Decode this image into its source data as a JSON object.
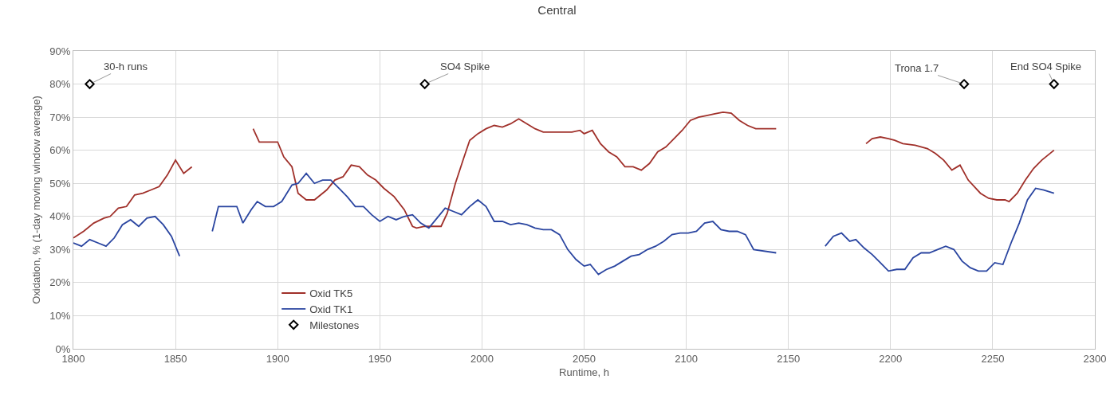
{
  "chart_data": {
    "type": "line",
    "title": "Central",
    "xlabel": "Runtime, h",
    "ylabel": "Oxidation, % (1-day moving window average)",
    "xlim": [
      1800,
      2300
    ],
    "xticks": [
      1800,
      1850,
      1900,
      1950,
      2000,
      2050,
      2100,
      2150,
      2200,
      2250,
      2300
    ],
    "ylim": [
      0,
      90
    ],
    "yticks": [
      {
        "value": 0,
        "label": "0%"
      },
      {
        "value": 10,
        "label": "10%"
      },
      {
        "value": 20,
        "label": "20%"
      },
      {
        "value": 30,
        "label": "30%"
      },
      {
        "value": 40,
        "label": "40%"
      },
      {
        "value": 50,
        "label": "50%"
      },
      {
        "value": 60,
        "label": "60%"
      },
      {
        "value": 70,
        "label": "70%"
      },
      {
        "value": 80,
        "label": "80%"
      },
      {
        "value": 90,
        "label": "90%"
      }
    ],
    "grid": true,
    "legend": "bottom left",
    "line_style": "solid",
    "series": [
      {
        "name": "Oxid TK5",
        "color": "#a0302a",
        "x": [
          1800,
          1805,
          1810,
          1815,
          1818,
          1822,
          1826,
          1830,
          1834,
          1838,
          1842,
          1846,
          1850,
          1854,
          1858,
          1870,
          1888,
          1891,
          1900,
          1903,
          1907,
          1910,
          1914,
          1918,
          1924,
          1928,
          1932,
          1936,
          1940,
          1944,
          1948,
          1952,
          1957,
          1962,
          1966,
          1968,
          1972,
          1980,
          1983,
          1987,
          1991,
          1994,
          1998,
          2002,
          2006,
          2010,
          2014,
          2018,
          2022,
          2026,
          2030,
          2034,
          2040,
          2044,
          2048,
          2050,
          2054,
          2058,
          2062,
          2066,
          2070,
          2074,
          2078,
          2082,
          2086,
          2090,
          2094,
          2098,
          2102,
          2106,
          2110,
          2114,
          2118,
          2122,
          2126,
          2130,
          2134,
          2144,
          2165,
          2188,
          2191,
          2195,
          2199,
          2202,
          2206,
          2212,
          2218,
          2222,
          2226,
          2230,
          2234,
          2238,
          2244,
          2248,
          2252,
          2256,
          2258,
          2262,
          2266,
          2270,
          2274,
          2280
        ],
        "values": [
          33.5,
          35.5,
          38,
          39.5,
          40,
          42.5,
          43,
          46.5,
          47,
          48,
          49,
          52.5,
          57,
          53,
          55,
          null,
          66.5,
          62.5,
          62.5,
          58,
          55,
          47,
          45,
          45,
          48,
          51,
          52,
          55.5,
          55,
          52.5,
          51,
          48.5,
          46,
          42,
          37,
          36.5,
          37,
          37,
          41,
          50,
          57.5,
          63,
          65,
          66.5,
          67.5,
          67,
          68,
          69.5,
          68,
          66.5,
          65.5,
          65.5,
          65.5,
          65.5,
          66,
          65,
          66,
          62,
          59.5,
          58,
          55,
          55,
          54,
          56,
          59.5,
          61,
          63.5,
          66,
          69,
          70,
          70.5,
          71,
          71.5,
          71.2,
          69,
          67.5,
          66.5,
          66.5,
          null,
          62,
          63.5,
          64,
          63.5,
          63,
          62,
          61.5,
          60.5,
          59,
          57,
          54,
          55.5,
          51,
          47,
          45.5,
          45,
          45,
          44.5,
          47,
          51,
          54.5,
          57,
          60
        ]
      },
      {
        "name": "Oxid TK1",
        "color": "#2a45a0",
        "x": [
          1800,
          1804,
          1808,
          1812,
          1816,
          1820,
          1824,
          1828,
          1832,
          1836,
          1840,
          1844,
          1848,
          1852,
          1860,
          1868,
          1871,
          1880,
          1883,
          1887,
          1890,
          1894,
          1898,
          1902,
          1907,
          1910,
          1914,
          1918,
          1922,
          1926,
          1930,
          1934,
          1938,
          1942,
          1946,
          1950,
          1954,
          1958,
          1962,
          1966,
          1970,
          1974,
          1978,
          1982,
          1986,
          1990,
          1994,
          1998,
          2002,
          2006,
          2010,
          2014,
          2018,
          2022,
          2026,
          2030,
          2034,
          2038,
          2042,
          2046,
          2050,
          2053,
          2057,
          2061,
          2065,
          2069,
          2073,
          2077,
          2081,
          2085,
          2089,
          2093,
          2097,
          2101,
          2105,
          2109,
          2113,
          2117,
          2121,
          2125,
          2129,
          2133,
          2144,
          2155,
          2168,
          2172,
          2176,
          2180,
          2183,
          2187,
          2191,
          2195,
          2199,
          2203,
          2207,
          2211,
          2215,
          2219,
          2223,
          2227,
          2231,
          2235,
          2239,
          2243,
          2247,
          2251,
          2255,
          2259,
          2263,
          2267,
          2271,
          2275,
          2280
        ],
        "values": [
          32,
          31,
          33,
          32,
          31,
          33.5,
          37.5,
          39,
          37,
          39.5,
          40,
          37.5,
          34,
          28,
          null,
          35.5,
          43,
          43,
          38,
          42,
          44.5,
          43,
          43,
          44.5,
          49.5,
          50,
          53,
          50,
          51,
          51,
          48.5,
          46,
          43,
          43,
          40.5,
          38.5,
          40,
          39,
          40,
          40.5,
          38,
          36.5,
          39.5,
          42.5,
          41.5,
          40.5,
          43,
          45,
          43,
          38.5,
          38.5,
          37.5,
          38,
          37.5,
          36.5,
          36,
          36,
          34.5,
          30,
          27,
          25,
          25.5,
          22.5,
          24,
          25,
          26.5,
          28,
          28.5,
          30,
          31,
          32.5,
          34.5,
          35,
          35,
          35.5,
          38,
          38.5,
          36,
          35.5,
          35.5,
          34.5,
          30,
          29,
          null,
          31,
          34,
          35,
          32.5,
          33,
          30.5,
          28.5,
          26,
          23.5,
          24,
          24,
          27.5,
          29,
          29,
          30,
          31,
          30,
          26.5,
          24.5,
          23.5,
          23.5,
          26,
          25.5,
          32,
          38,
          45,
          48.5,
          48,
          47
        ]
      },
      {
        "name": "Milestones",
        "color": "#000000",
        "type": "scatter",
        "marker": "diamond",
        "x": [
          1808,
          1972,
          2236,
          2280
        ],
        "values": [
          80,
          80,
          80,
          80
        ]
      }
    ],
    "annotations": [
      {
        "text": "30-h runs",
        "x": 1808,
        "y": 80
      },
      {
        "text": "SO4 Spike",
        "x": 1972,
        "y": 80
      },
      {
        "text": "Trona 1.7",
        "x": 2236,
        "y": 80
      },
      {
        "text": "End SO4 Spike",
        "x": 2280,
        "y": 80
      }
    ]
  }
}
